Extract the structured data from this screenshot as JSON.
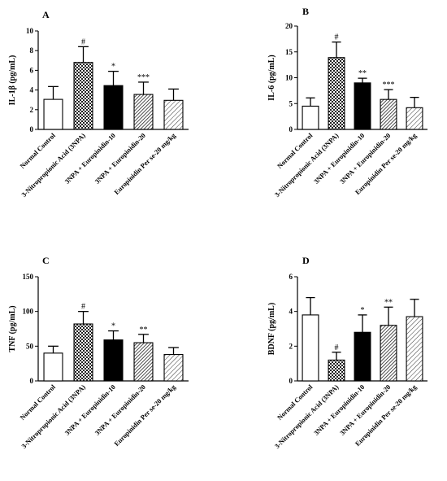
{
  "figure": {
    "categories": [
      "Normal Control",
      "3-Nitropropionic Acid (3NPA)",
      "3NPA + Europinidin-10",
      "3NPA + Europinidin-20",
      "Europinidin Per se-20 mg/kg"
    ],
    "bar_patterns": [
      "open",
      "checker",
      "solid",
      "hatch-dense",
      "hatch-sparse"
    ]
  },
  "chart_data": [
    {
      "panel": "A",
      "type": "bar",
      "title": "",
      "xlabel": "",
      "ylabel": "IL-1β (pg/mL)",
      "ylim": [
        0,
        10
      ],
      "yticks": [
        0,
        2,
        4,
        6,
        8,
        10
      ],
      "categories": [
        "Normal Control",
        "3-Nitropropionic Acid (3NPA)",
        "3NPA + Europinidin-10",
        "3NPA + Europinidin-20",
        "Europinidin Per se-20 mg/kg"
      ],
      "values": [
        3.05,
        6.8,
        4.45,
        3.55,
        2.95
      ],
      "errors": [
        1.3,
        1.6,
        1.45,
        1.25,
        1.15
      ],
      "significance": [
        "",
        "#",
        "*",
        "***",
        ""
      ]
    },
    {
      "panel": "B",
      "type": "bar",
      "title": "",
      "xlabel": "",
      "ylabel": "IL-6 (pg/mL)",
      "ylim": [
        0,
        20
      ],
      "yticks": [
        0,
        5,
        10,
        15,
        20
      ],
      "categories": [
        "Normal Control",
        "3-Nitropropionic Acid (3NPA)",
        "3NPA + Europinidin-10",
        "3NPA + Europinidin-20",
        "Europinidin Per se-20 mg/kg"
      ],
      "values": [
        4.5,
        13.9,
        9.0,
        5.8,
        4.2
      ],
      "errors": [
        1.6,
        3.0,
        0.9,
        1.9,
        2.0
      ],
      "significance": [
        "",
        "#",
        "**",
        "***",
        ""
      ]
    },
    {
      "panel": "C",
      "type": "bar",
      "title": "",
      "xlabel": "",
      "ylabel": "TNF (pg/mL)",
      "ylim": [
        0,
        150
      ],
      "yticks": [
        0,
        50,
        100,
        150
      ],
      "categories": [
        "Normal Control",
        "3-Nitropropionic Acid (3NPA)",
        "3NPA + Europinidin-10",
        "3NPA + Europinidin-20",
        "Europinidin Per se-20 mg/kg"
      ],
      "values": [
        40,
        82,
        59,
        55,
        38
      ],
      "errors": [
        10,
        18,
        13,
        12,
        10
      ],
      "significance": [
        "",
        "#",
        "*",
        "**",
        ""
      ]
    },
    {
      "panel": "D",
      "type": "bar",
      "title": "",
      "xlabel": "",
      "ylabel": "BDNF (pg/mL)",
      "ylim": [
        0,
        6
      ],
      "yticks": [
        0,
        2,
        4,
        6
      ],
      "categories": [
        "Normal Control",
        "3-Nitropropionic Acid (3NPA)",
        "3NPA + Europinidin-10",
        "3NPA + Europinidin-20",
        "Europinidin Per se-20 mg/kg"
      ],
      "values": [
        3.8,
        1.2,
        2.8,
        3.2,
        3.7
      ],
      "errors": [
        1.0,
        0.45,
        1.0,
        1.05,
        1.0
      ],
      "significance": [
        "",
        "#",
        "*",
        "**",
        ""
      ]
    }
  ]
}
